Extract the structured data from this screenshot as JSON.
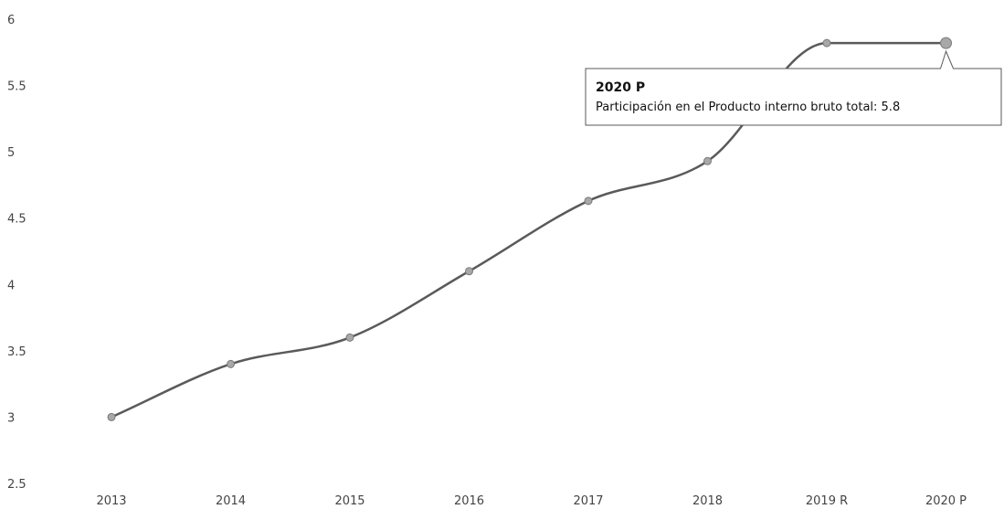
{
  "chart_data": {
    "type": "line",
    "title": "",
    "xlabel": "",
    "ylabel": "",
    "categories": [
      "2013",
      "2014",
      "2015",
      "2016",
      "2017",
      "2018",
      "2019 R",
      "2020 P"
    ],
    "series": [
      {
        "values": [
          3.0,
          3.4,
          3.6,
          4.1,
          4.63,
          4.93,
          5.82,
          5.82
        ]
      }
    ],
    "ylim": [
      2.5,
      6
    ],
    "yticks": [
      "2.5",
      "3",
      "3.5",
      "4",
      "4.5",
      "5",
      "5.5",
      "6"
    ],
    "grid": false,
    "legend": "none",
    "colors": {
      "line": "#5a5a5a",
      "point": "#a8a8a8"
    }
  },
  "tooltip": {
    "title": "2020 P",
    "body": "Participación en el Producto interno bruto total: 5.8"
  }
}
